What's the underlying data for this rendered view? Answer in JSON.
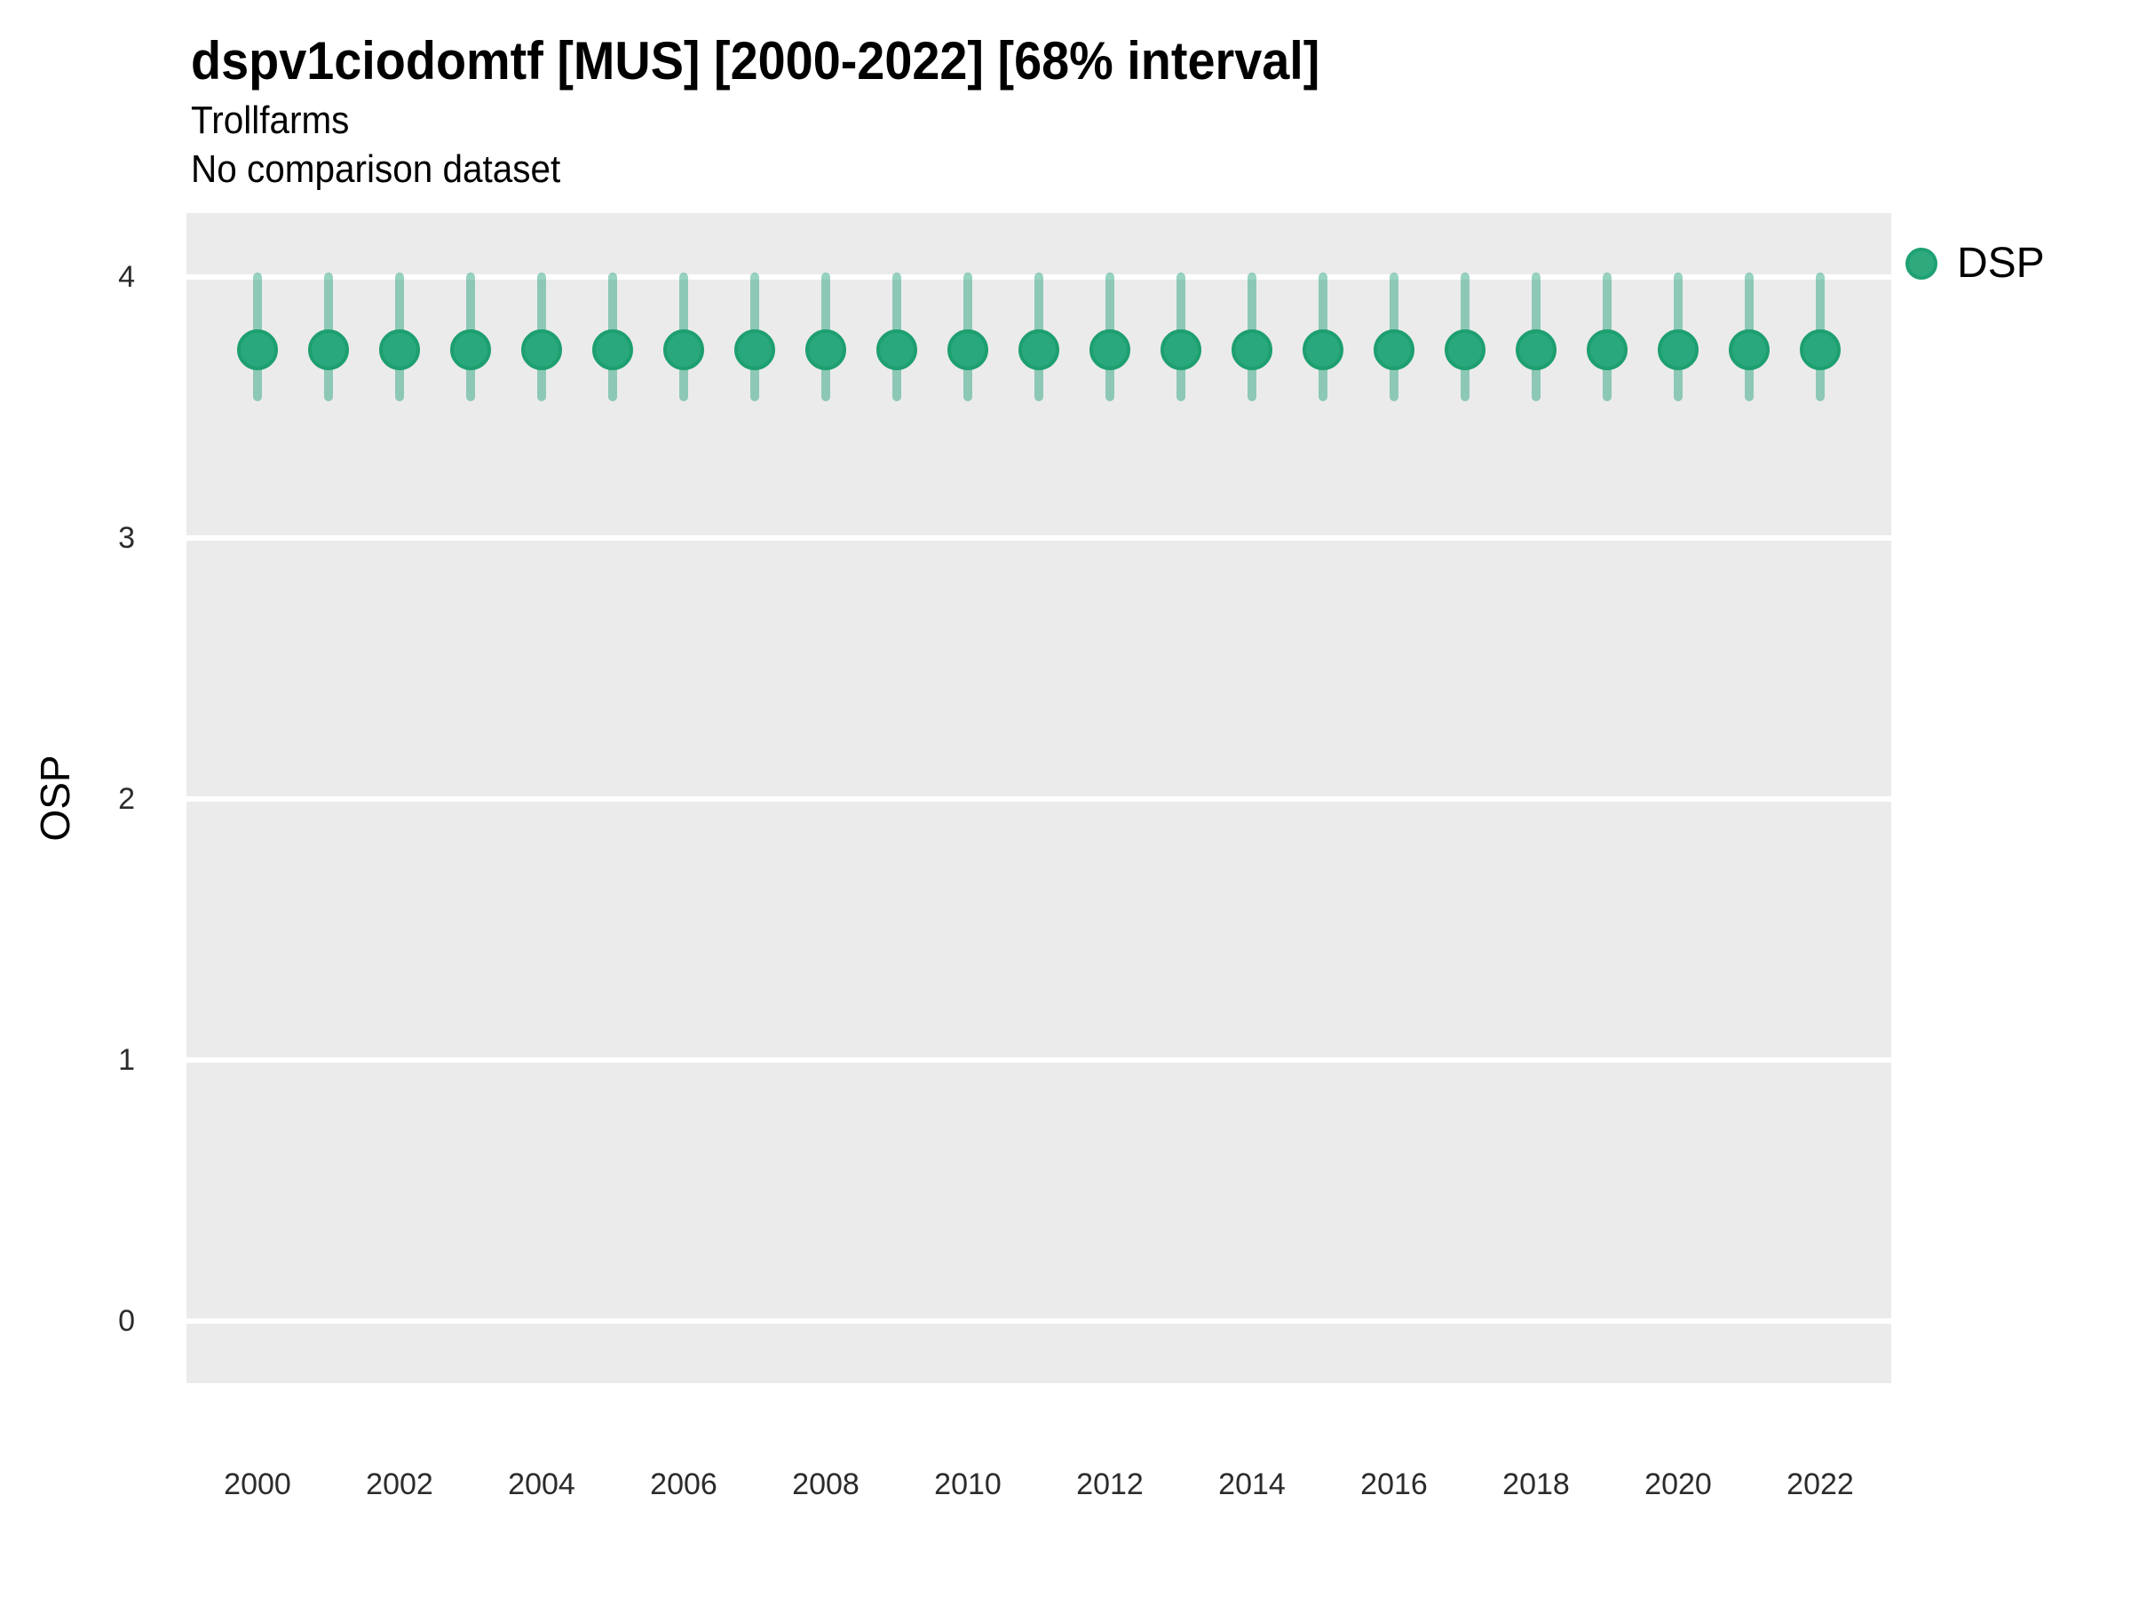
{
  "title": "dspv1ciodomtf [MUS] [2000-2022] [68% interval]",
  "subtitle": "Trollfarms",
  "note": "No comparison dataset",
  "ylabel": "OSP",
  "legend": {
    "label": "DSP"
  },
  "colors": {
    "point_fill": "#2AA87D",
    "point_border": "#1D9F70",
    "interval_bar": "rgba(27,158,119,0.45)",
    "panel_background": "#EBEBEB",
    "gridline": "#FFFFFF",
    "legend_marker_fill": "#2EAA7D",
    "legend_marker_border": "#1FA173",
    "title_text": "#000000",
    "tick_text": "#2B2B2B"
  },
  "chart_data": {
    "type": "scatter",
    "title": "dspv1ciodomtf [MUS] [2000-2022] [68% interval]",
    "subtitle": "Trollfarms",
    "annotation": "No comparison dataset",
    "xlabel": "",
    "ylabel": "OSP",
    "interval": "68%",
    "grid": "major-horizontal",
    "legend_position": "right",
    "ylim": [
      -0.24,
      4.24
    ],
    "y_ticks": [
      0,
      1,
      2,
      3,
      4
    ],
    "x_ticks": [
      2000,
      2002,
      2004,
      2006,
      2008,
      2010,
      2012,
      2014,
      2016,
      2018,
      2020,
      2022
    ],
    "series": [
      {
        "name": "DSP",
        "x": [
          2000,
          2001,
          2002,
          2003,
          2004,
          2005,
          2006,
          2007,
          2008,
          2009,
          2010,
          2011,
          2012,
          2013,
          2014,
          2015,
          2016,
          2017,
          2018,
          2019,
          2020,
          2021,
          2022
        ],
        "y": [
          3.72,
          3.72,
          3.72,
          3.72,
          3.72,
          3.72,
          3.72,
          3.72,
          3.72,
          3.72,
          3.72,
          3.72,
          3.72,
          3.72,
          3.72,
          3.72,
          3.72,
          3.72,
          3.72,
          3.72,
          3.72,
          3.72,
          3.72
        ],
        "y_lo": [
          3.54,
          3.54,
          3.54,
          3.54,
          3.54,
          3.54,
          3.54,
          3.54,
          3.54,
          3.54,
          3.54,
          3.54,
          3.54,
          3.54,
          3.54,
          3.54,
          3.54,
          3.54,
          3.54,
          3.54,
          3.54,
          3.54,
          3.54
        ],
        "y_hi": [
          4.0,
          4.0,
          4.0,
          4.0,
          4.0,
          4.0,
          4.0,
          4.0,
          4.0,
          4.0,
          4.0,
          4.0,
          4.0,
          4.0,
          4.0,
          4.0,
          4.0,
          4.0,
          4.0,
          4.0,
          4.0,
          4.0,
          4.0
        ]
      }
    ]
  }
}
